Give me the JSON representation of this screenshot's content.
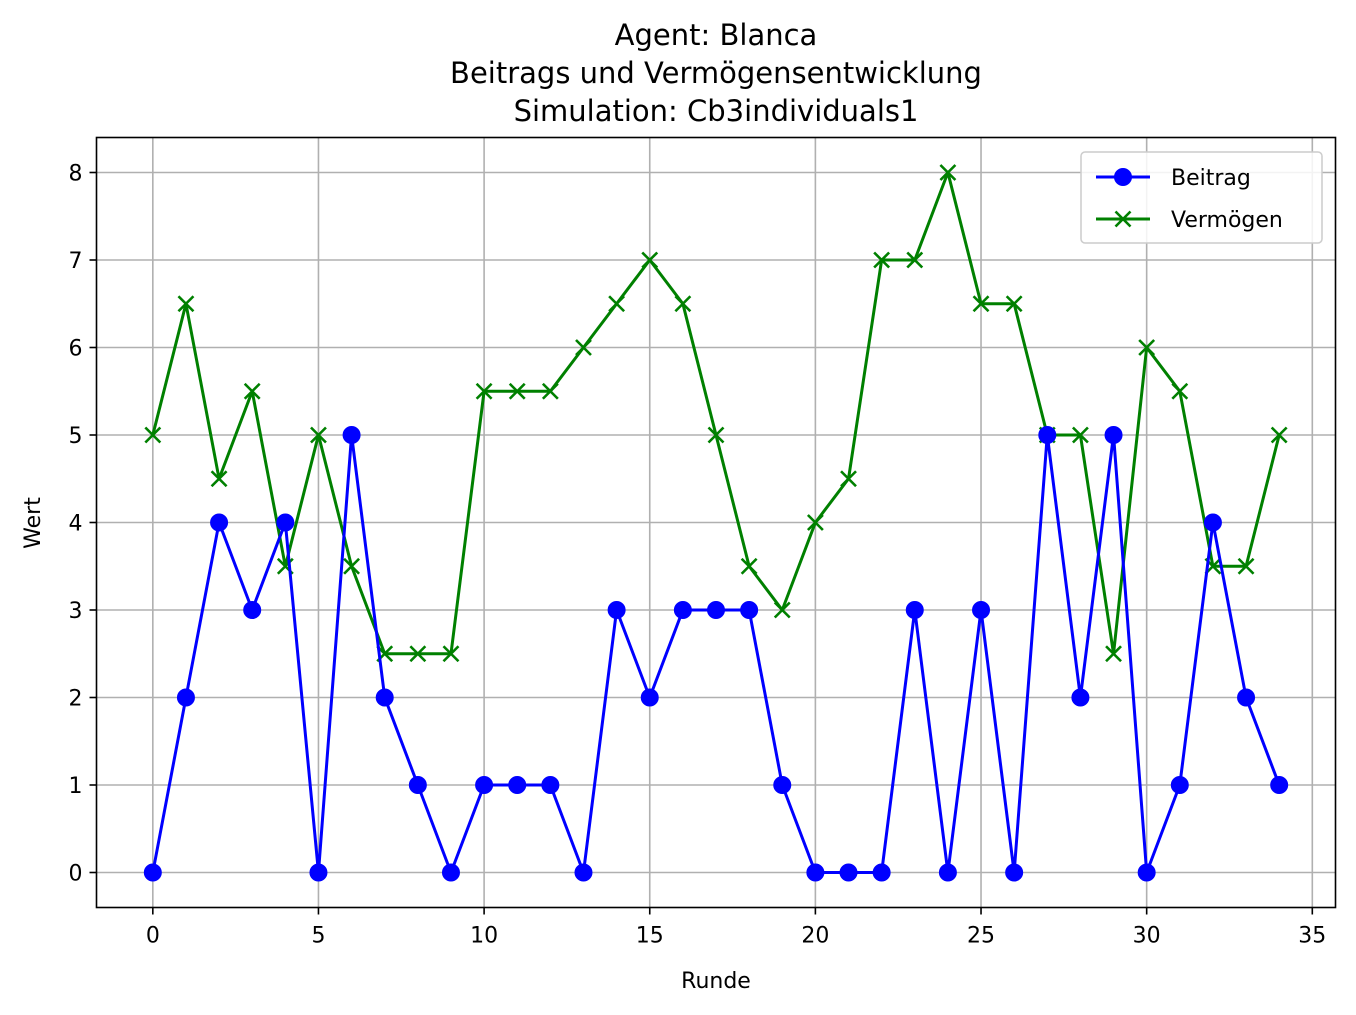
{
  "chart_data": {
    "type": "line",
    "title_lines": [
      "Agent: Blanca",
      "Beitrags und Vermögensentwicklung",
      "Simulation: Cb3individuals1"
    ],
    "xlabel": "Runde",
    "ylabel": "Wert",
    "xlim": [
      -1.7,
      35.7
    ],
    "ylim": [
      -0.4,
      8.4
    ],
    "xticks": [
      0,
      5,
      10,
      15,
      20,
      25,
      30,
      35
    ],
    "yticks": [
      0,
      1,
      2,
      3,
      4,
      5,
      6,
      7,
      8
    ],
    "grid": true,
    "legend_position": "top-right",
    "x": [
      0,
      1,
      2,
      3,
      4,
      5,
      6,
      7,
      8,
      9,
      10,
      11,
      12,
      13,
      14,
      15,
      16,
      17,
      18,
      19,
      20,
      21,
      22,
      23,
      24,
      25,
      26,
      27,
      28,
      29,
      30,
      31,
      32,
      33,
      34
    ],
    "series": [
      {
        "name": "Beitrag",
        "color": "#0000ff",
        "marker": "circle",
        "values": [
          0,
          2,
          4,
          3,
          4,
          0,
          5,
          2,
          1,
          0,
          1,
          1,
          1,
          0,
          3,
          2,
          3,
          3,
          3,
          1,
          0,
          0,
          0,
          3,
          0,
          3,
          0,
          5,
          2,
          5,
          0,
          1,
          4,
          2,
          1
        ]
      },
      {
        "name": "Vermögen",
        "color": "#008000",
        "marker": "x",
        "values": [
          5,
          6.5,
          4.5,
          5.5,
          3.5,
          5,
          3.5,
          2.5,
          2.5,
          2.5,
          5.5,
          5.5,
          5.5,
          6,
          6.5,
          7,
          6.5,
          5,
          3.5,
          3,
          4,
          4.5,
          7,
          7,
          8,
          6.5,
          6.5,
          5,
          5,
          2.5,
          6,
          5.5,
          3.5,
          3.5,
          5
        ]
      }
    ]
  }
}
